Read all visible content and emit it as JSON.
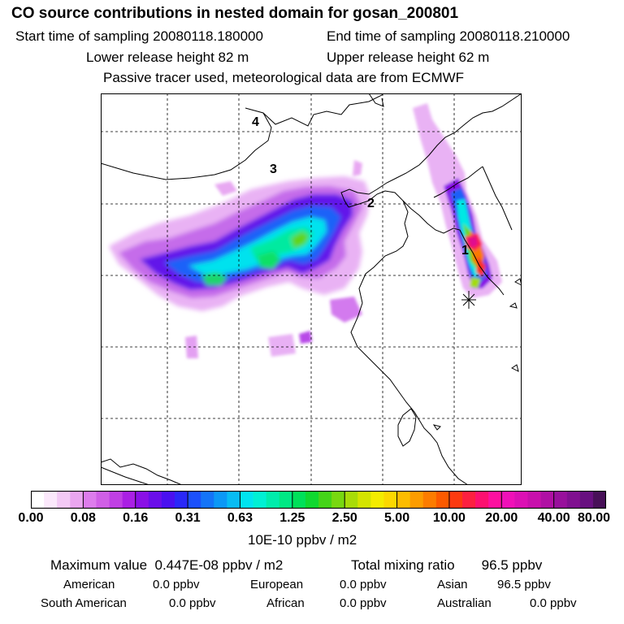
{
  "header": {
    "title": "CO  source contributions in nested domain for gosan_200801",
    "start_time": "Start time of sampling 20080118.180000",
    "end_time": "End time of sampling 20080118.210000",
    "lower_release": "Lower release height   82 m",
    "upper_release": "Upper release height   62 m",
    "tracer_note": "Passive tracer used, meteorological data are from ECMWF"
  },
  "chart_data": {
    "type": "heatmap",
    "title": "CO  source contributions in nested domain for gosan_200801",
    "grid": true,
    "map_labels": [
      "4",
      "3",
      "2",
      "1"
    ],
    "colorbar": {
      "ticks": [
        "0.00",
        "0.08",
        "0.16",
        "0.31",
        "0.63",
        "1.25",
        "2.50",
        "5.00",
        "10.00",
        "20.00",
        "40.00",
        "80.00"
      ],
      "units": "10E-10 ppbv / m2",
      "colors": [
        "#ffffff",
        "#fbe8fb",
        "#f3c9f5",
        "#eaa6f0",
        "#dd7cec",
        "#d05fe6",
        "#c040e4",
        "#aa20e4",
        "#8a10e6",
        "#6a0eea",
        "#4a10f0",
        "#2a28f8",
        "#1c50fa",
        "#1474f8",
        "#0c98f6",
        "#08bcf4",
        "#00e4f0",
        "#00f0d4",
        "#00ecac",
        "#00e884",
        "#00e05a",
        "#10d830",
        "#44d418",
        "#78d810",
        "#a8dc08",
        "#d4e400",
        "#f4ec00",
        "#fcd800",
        "#fcbc00",
        "#fc9c00",
        "#fc7c00",
        "#fc5a00",
        "#fc3a10",
        "#fc2040",
        "#fc1070",
        "#fc10a0",
        "#f010b8",
        "#dc10b4",
        "#c810ac",
        "#b010a4",
        "#98109c",
        "#801090",
        "#681080",
        "#481058"
      ]
    },
    "max_value": "0.447E-08 ppbv / m2",
    "total_mixing_ratio": "96.5 ppbv",
    "contributions": [
      {
        "region": "American",
        "value": "0.0 ppbv"
      },
      {
        "region": "European",
        "value": "0.0 ppbv"
      },
      {
        "region": "Asian",
        "value": "96.5 ppbv"
      },
      {
        "region": "South American",
        "value": "0.0 ppbv"
      },
      {
        "region": "African",
        "value": "0.0 ppbv"
      },
      {
        "region": "Australian",
        "value": "0.0 ppbv"
      }
    ]
  },
  "footer": {
    "max_label": "Maximum value",
    "total_label": "Total mixing ratio"
  }
}
